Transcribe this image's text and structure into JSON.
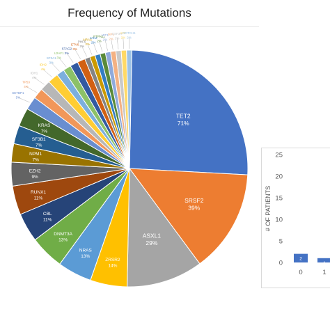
{
  "chart_data": [
    {
      "type": "pie",
      "title": "Frequency of Mutations",
      "slices": [
        {
          "gene": "TET2",
          "label": "71%",
          "value": 71,
          "color": "#4472c4"
        },
        {
          "gene": "SRSF2",
          "label": "39%",
          "value": 39,
          "color": "#ed7d31"
        },
        {
          "gene": "ASXL1",
          "label": "29%",
          "value": 29,
          "color": "#a5a5a5"
        },
        {
          "gene": "ZRSR2",
          "label": "14%",
          "value": 14,
          "color": "#ffc000"
        },
        {
          "gene": "NRAS",
          "label": "13%",
          "value": 13,
          "color": "#5b9bd5"
        },
        {
          "gene": "DNMT3A",
          "label": "13%",
          "value": 13,
          "color": "#70ad47"
        },
        {
          "gene": "CBL",
          "label": "11%",
          "value": 11,
          "color": "#264478"
        },
        {
          "gene": "RUNX1",
          "label": "11%",
          "value": 11,
          "color": "#9e480e"
        },
        {
          "gene": "EZH2",
          "label": "9%",
          "value": 9,
          "color": "#636363"
        },
        {
          "gene": "NPM1",
          "label": "7%",
          "value": 7,
          "color": "#997300"
        },
        {
          "gene": "SF3B1",
          "label": "7%",
          "value": 7,
          "color": "#255e91"
        },
        {
          "gene": "KRAS",
          "label": "7%",
          "value": 7,
          "color": "#43682b"
        },
        {
          "gene": "SETBP1",
          "label": "5%",
          "value": 5,
          "color": "#698ed0"
        },
        {
          "gene": "TP53",
          "label": "4%",
          "value": 4,
          "color": "#f1975a"
        },
        {
          "gene": "IDH1",
          "label": "4%",
          "value": 4,
          "color": "#b7b7b7"
        },
        {
          "gene": "IDH2",
          "label": "4%",
          "value": 4,
          "color": "#ffcd33"
        },
        {
          "gene": "SF3A1",
          "label": "3%",
          "value": 3,
          "color": "#7cafdd"
        },
        {
          "gene": "U2AF1",
          "label": "3%",
          "value": 3,
          "color": "#8cc168"
        },
        {
          "gene": "STAG2",
          "label": "3%",
          "value": 3,
          "color": "#335aa1"
        },
        {
          "gene": "ETV6",
          "label": "3%",
          "value": 3,
          "color": "#d26012"
        },
        {
          "gene": "PHF6",
          "label": "2%",
          "value": 2,
          "color": "#848484"
        },
        {
          "gene": "NRAS",
          "label": "2%",
          "value": 2,
          "color": "#cc9a00"
        },
        {
          "gene": "JAK2",
          "label": "2%",
          "value": 2,
          "color": "#327dc2"
        },
        {
          "gene": "PTPN11",
          "label": "2%",
          "value": 2,
          "color": "#5a8a39"
        },
        {
          "gene": "WT1",
          "label": "2%",
          "value": 2,
          "color": "#8faadc"
        },
        {
          "gene": "MPL",
          "label": "2%",
          "value": 2,
          "color": "#f4b183"
        },
        {
          "gene": "CSF3R",
          "label": "2%",
          "value": 2,
          "color": "#c9c9c9"
        },
        {
          "gene": "KIT",
          "label": "2%",
          "value": 2,
          "color": "#ffd966"
        },
        {
          "gene": "NOTCH1",
          "label": "2%",
          "value": 2,
          "color": "#9dc3e6"
        }
      ]
    },
    {
      "type": "bar",
      "ylabel": "# OF PATIENTS",
      "ylim": [
        0,
        25
      ],
      "yticks": [
        "0",
        "5",
        "10",
        "15",
        "20",
        "25"
      ],
      "categories": [
        "0",
        "1"
      ],
      "values": [
        2,
        1
      ],
      "color": "#4472c4"
    }
  ]
}
